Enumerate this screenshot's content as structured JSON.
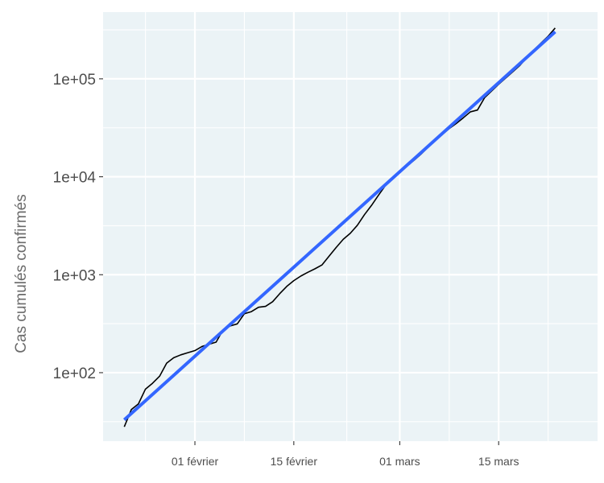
{
  "chart_data": {
    "type": "line",
    "ylabel": "Cas cumulés confirmés",
    "xlabel": "",
    "y_scale": "log10",
    "grid": true,
    "x_tick_labels": [
      {
        "date": "2020-02-01",
        "label": "01 février"
      },
      {
        "date": "2020-02-15",
        "label": "15 février"
      },
      {
        "date": "2020-03-01",
        "label": "01 mars"
      },
      {
        "date": "2020-03-15",
        "label": "15 mars"
      }
    ],
    "y_tick_labels": [
      {
        "value": 100,
        "label": "1e+02"
      },
      {
        "value": 1000,
        "label": "1e+03"
      },
      {
        "value": 10000,
        "label": "1e+04"
      },
      {
        "value": 100000,
        "label": "1e+05"
      }
    ],
    "xlim": [
      "2020-01-19",
      "2020-03-29"
    ],
    "ylim": [
      20,
      480000
    ],
    "colors": {
      "panel": "#ebf3f6",
      "grid": "#ffffff",
      "observed": "#000000",
      "fit": "#3366ff"
    },
    "series": [
      {
        "kind": "observed",
        "points": [
          [
            "2020-01-22",
            28
          ],
          [
            "2020-01-23",
            42
          ],
          [
            "2020-01-24",
            48
          ],
          [
            "2020-01-25",
            68
          ],
          [
            "2020-01-26",
            78
          ],
          [
            "2020-01-27",
            92
          ],
          [
            "2020-01-28",
            125
          ],
          [
            "2020-01-29",
            142
          ],
          [
            "2020-01-30",
            152
          ],
          [
            "2020-01-31",
            160
          ],
          [
            "2020-02-01",
            168
          ],
          [
            "2020-02-02",
            185
          ],
          [
            "2020-02-03",
            195
          ],
          [
            "2020-02-04",
            205
          ],
          [
            "2020-02-05",
            275
          ],
          [
            "2020-02-06",
            300
          ],
          [
            "2020-02-07",
            315
          ],
          [
            "2020-02-08",
            400
          ],
          [
            "2020-02-09",
            420
          ],
          [
            "2020-02-10",
            465
          ],
          [
            "2020-02-11",
            475
          ],
          [
            "2020-02-12",
            530
          ],
          [
            "2020-02-13",
            640
          ],
          [
            "2020-02-14",
            760
          ],
          [
            "2020-02-15",
            870
          ],
          [
            "2020-02-16",
            970
          ],
          [
            "2020-02-17",
            1060
          ],
          [
            "2020-02-18",
            1150
          ],
          [
            "2020-02-19",
            1260
          ],
          [
            "2020-02-20",
            1550
          ],
          [
            "2020-02-21",
            1900
          ],
          [
            "2020-02-22",
            2300
          ],
          [
            "2020-02-23",
            2650
          ],
          [
            "2020-02-24",
            3200
          ],
          [
            "2020-02-25",
            4100
          ],
          [
            "2020-02-26",
            5100
          ],
          [
            "2020-02-27",
            6500
          ],
          [
            "2020-02-28",
            8200
          ],
          [
            "2020-02-29",
            9500
          ],
          [
            "2020-03-01",
            11200
          ],
          [
            "2020-03-02",
            12900
          ],
          [
            "2020-03-03",
            14700
          ],
          [
            "2020-03-04",
            17000
          ],
          [
            "2020-03-05",
            20000
          ],
          [
            "2020-03-06",
            23500
          ],
          [
            "2020-03-07",
            27000
          ],
          [
            "2020-03-08",
            31000
          ],
          [
            "2020-03-09",
            35000
          ],
          [
            "2020-03-10",
            40000
          ],
          [
            "2020-03-11",
            46000
          ],
          [
            "2020-03-12",
            48000
          ],
          [
            "2020-03-13",
            64000
          ],
          [
            "2020-03-14",
            75000
          ],
          [
            "2020-03-15",
            88000
          ],
          [
            "2020-03-16",
            102000
          ],
          [
            "2020-03-17",
            118000
          ],
          [
            "2020-03-18",
            137000
          ],
          [
            "2020-03-19",
            165000
          ],
          [
            "2020-03-20",
            197000
          ],
          [
            "2020-03-21",
            232000
          ],
          [
            "2020-03-22",
            272000
          ],
          [
            "2020-03-23",
            330000
          ]
        ]
      },
      {
        "kind": "fit",
        "points": [
          [
            "2020-01-22",
            33
          ],
          [
            "2020-03-23",
            302000
          ]
        ]
      }
    ]
  }
}
